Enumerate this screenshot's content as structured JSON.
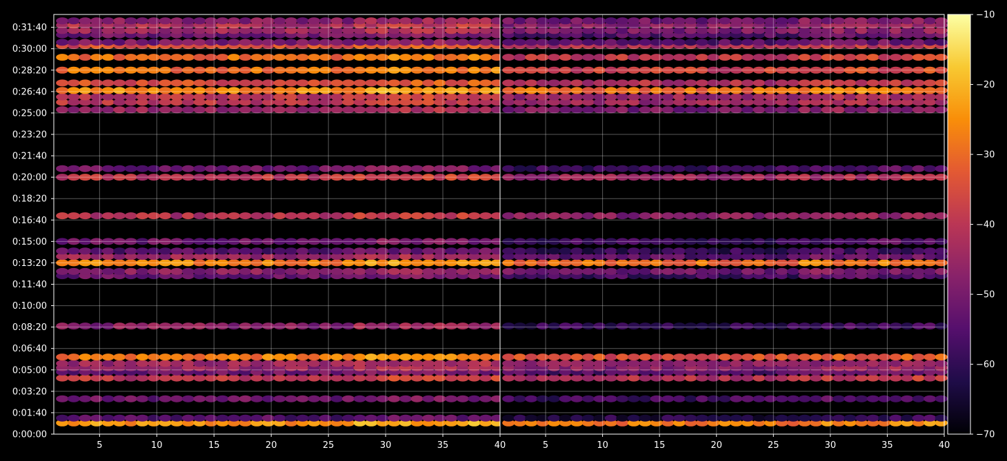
{
  "chart_data": {
    "type": "heatmap",
    "title": "",
    "xlabel": "",
    "ylabel": "",
    "colormap": "inferno",
    "background": "#000000",
    "grid": true,
    "panels": [
      {
        "name": "",
        "xlim": [
          1,
          40
        ],
        "xticks": [
          5,
          10,
          15,
          20,
          25,
          30,
          35,
          40
        ],
        "xticklabels": [
          "5",
          "10",
          "15",
          "20",
          "25",
          "30",
          "35",
          "40"
        ]
      },
      {
        "name": "",
        "xlim": [
          1,
          40
        ],
        "xticks": [
          5,
          10,
          15,
          20,
          25,
          30,
          35,
          40
        ],
        "xticklabels": [
          "5",
          "10",
          "15",
          "20",
          "25",
          "30",
          "35",
          "40"
        ]
      }
    ],
    "ylim_seconds": [
      0,
      1960
    ],
    "yticks_seconds": [
      0,
      100,
      200,
      300,
      400,
      500,
      600,
      700,
      800,
      900,
      1000,
      1100,
      1200,
      1300,
      1400,
      1500,
      1600,
      1700,
      1800,
      1900
    ],
    "yticklabels": [
      "0:00:00",
      "0:01:40",
      "0:03:20",
      "0:05:00",
      "0:06:40",
      "0:08:20",
      "0:10:00",
      "0:11:40",
      "0:13:20",
      "0:15:00",
      "0:16:40",
      "0:18:20",
      "0:20:00",
      "0:21:40",
      "0:23:20",
      "0:25:00",
      "0:26:40",
      "0:28:20",
      "0:30:00",
      "0:31:40"
    ],
    "colorbar": {
      "min": -70,
      "max": -10,
      "ticks": [
        -10,
        -20,
        -30,
        -40,
        -50,
        -60,
        -70
      ],
      "ticklabels": [
        "−10",
        "−20",
        "−30",
        "−40",
        "−50",
        "−60",
        "−70"
      ]
    },
    "bands": [
      {
        "t": 52,
        "v1": -25,
        "v2": -28
      },
      {
        "t": 75,
        "v1": -55,
        "v2": -62
      },
      {
        "t": 165,
        "v1": -52,
        "v2": -58
      },
      {
        "t": 262,
        "v1": -40,
        "v2": -42
      },
      {
        "t": 290,
        "v1": -52,
        "v2": -55
      },
      {
        "t": 310,
        "v1": -46,
        "v2": -48
      },
      {
        "t": 330,
        "v1": -45,
        "v2": -48
      },
      {
        "t": 360,
        "v1": -28,
        "v2": -35
      },
      {
        "t": 505,
        "v1": -48,
        "v2": -60
      },
      {
        "t": 740,
        "v1": -52,
        "v2": -58
      },
      {
        "t": 760,
        "v1": -48,
        "v2": -52
      },
      {
        "t": 800,
        "v1": -27,
        "v2": -30
      },
      {
        "t": 830,
        "v1": -45,
        "v2": -55
      },
      {
        "t": 855,
        "v1": -55,
        "v2": -60
      },
      {
        "t": 900,
        "v1": -52,
        "v2": -58
      },
      {
        "t": 1020,
        "v1": -42,
        "v2": -48
      },
      {
        "t": 1200,
        "v1": -40,
        "v2": -45
      },
      {
        "t": 1240,
        "v1": -52,
        "v2": -58
      },
      {
        "t": 1515,
        "v1": -45,
        "v2": -50
      },
      {
        "t": 1550,
        "v1": -40,
        "v2": -45
      },
      {
        "t": 1575,
        "v1": -40,
        "v2": -45
      },
      {
        "t": 1605,
        "v1": -26,
        "v2": -30
      },
      {
        "t": 1640,
        "v1": -35,
        "v2": -42
      },
      {
        "t": 1700,
        "v1": -30,
        "v2": -38
      },
      {
        "t": 1760,
        "v1": -30,
        "v2": -40
      },
      {
        "t": 1815,
        "v1": -35,
        "v2": -42
      },
      {
        "t": 1830,
        "v1": -50,
        "v2": -55
      },
      {
        "t": 1865,
        "v1": -52,
        "v2": -56
      },
      {
        "t": 1885,
        "v1": -45,
        "v2": -50
      },
      {
        "t": 1910,
        "v1": -42,
        "v2": -48
      },
      {
        "t": 1930,
        "v1": -48,
        "v2": -52
      }
    ]
  }
}
